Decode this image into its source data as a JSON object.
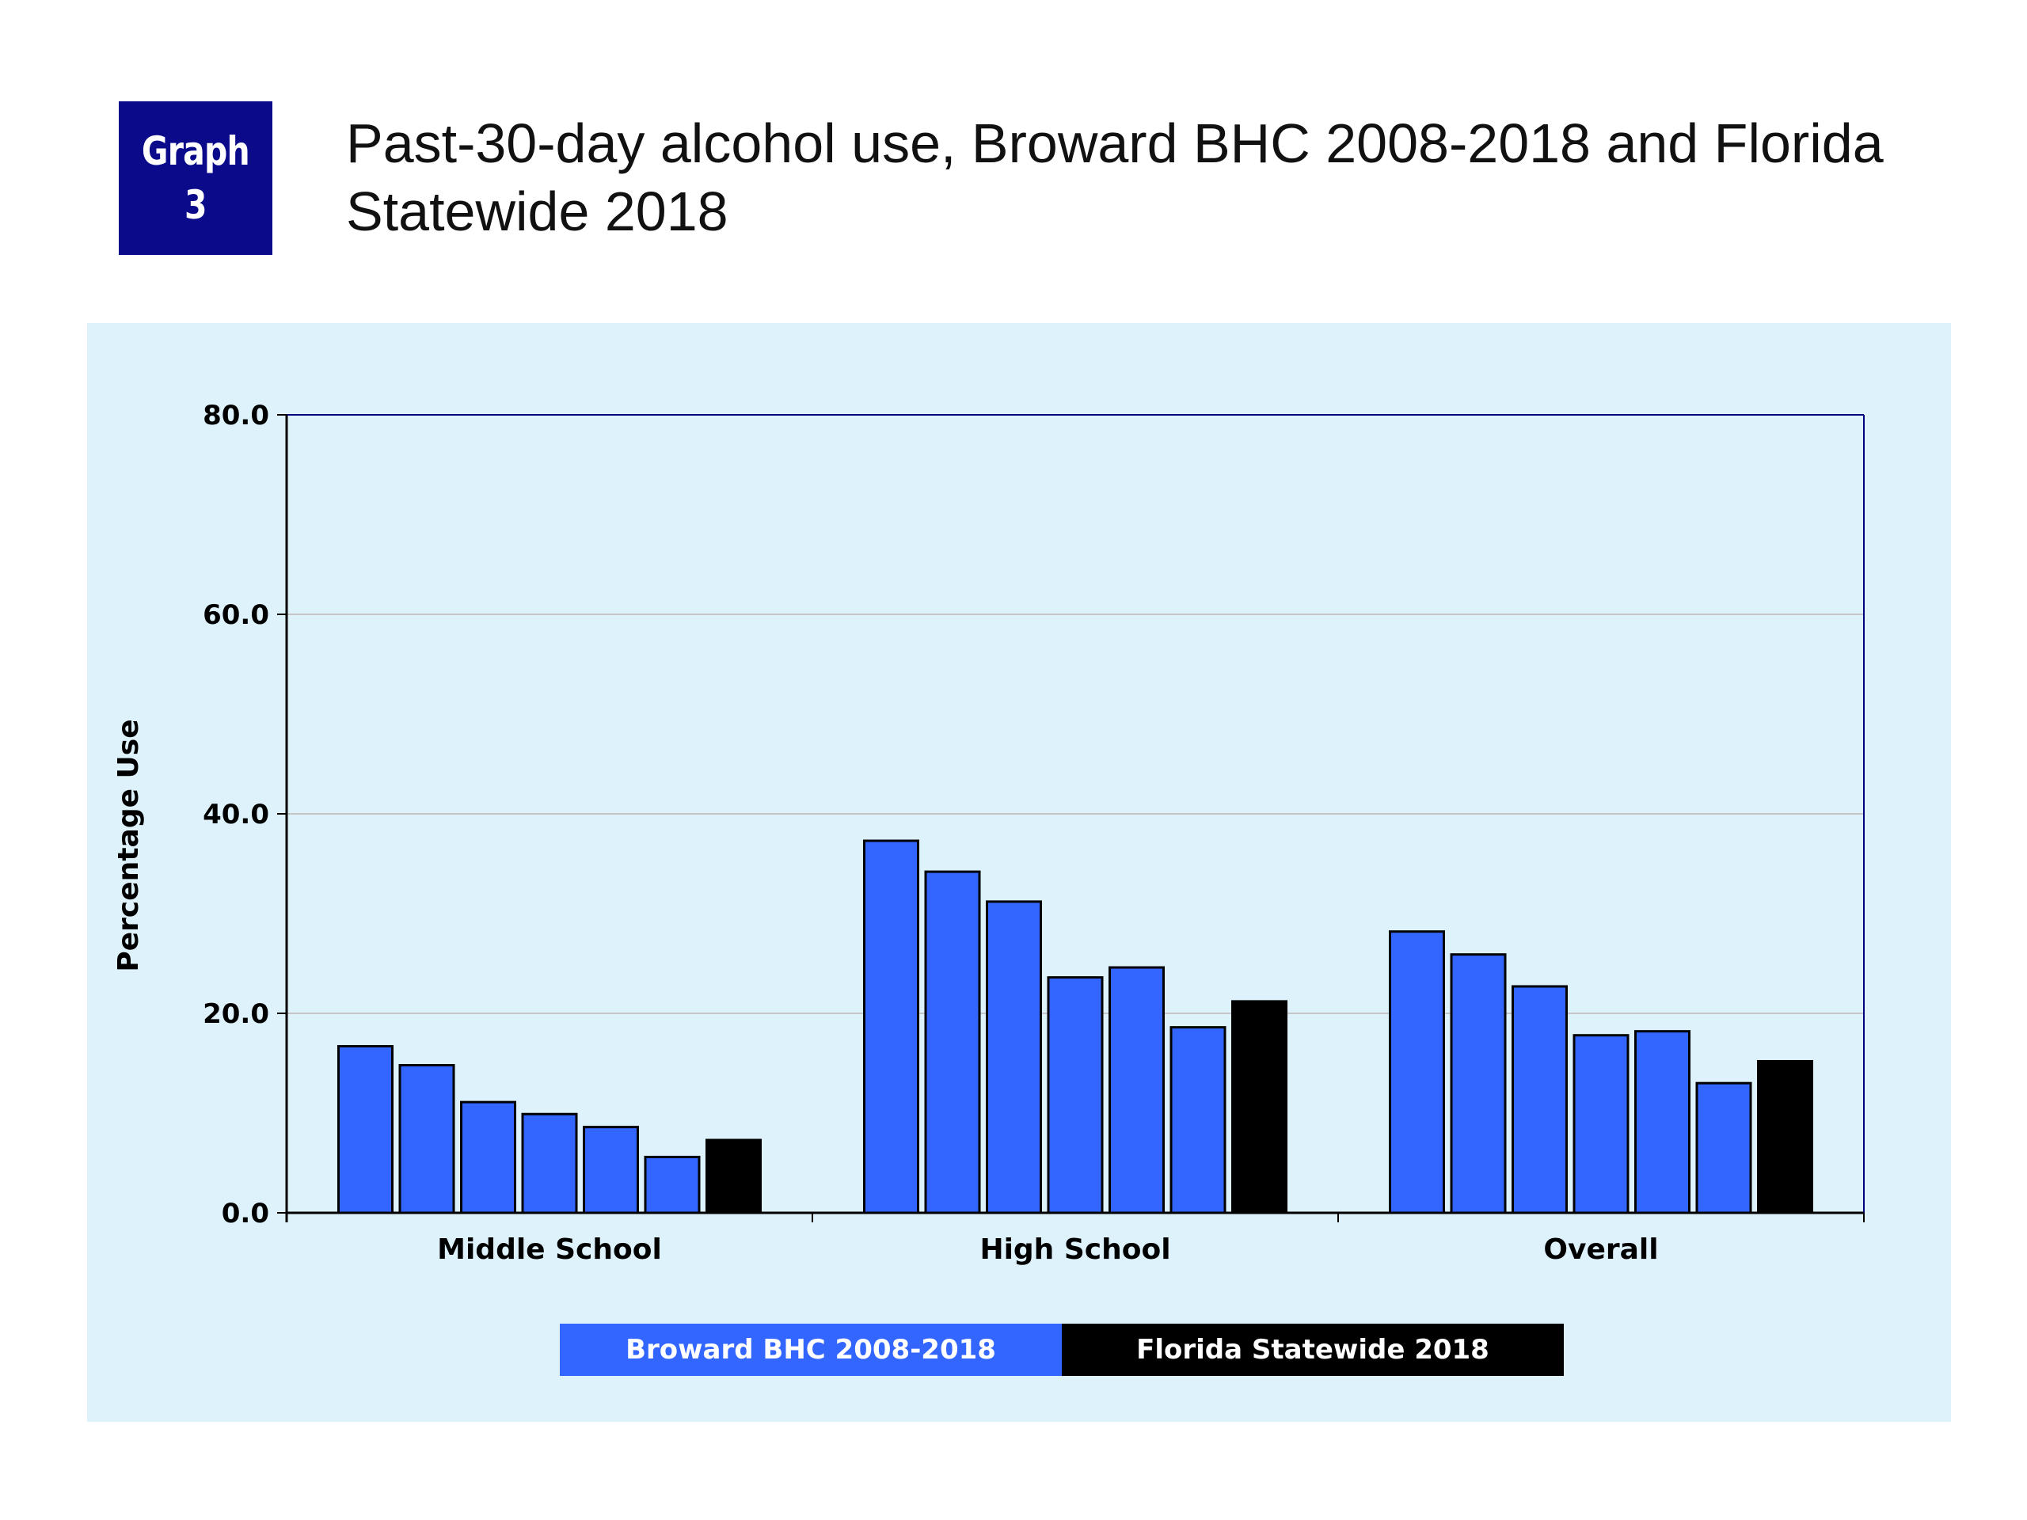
{
  "badge": {
    "line1": "Graph",
    "line2": "3"
  },
  "title": "Past-30-day alcohol use, Broward BHC 2008-2018 and Florida Statewide 2018",
  "colors": {
    "badge_bg": "#0a0a8a",
    "panel_bg": "#def2fc",
    "broward": "#3366ff",
    "statewide": "#000000",
    "plot_border": "#000080"
  },
  "chart_data": {
    "type": "bar",
    "title": "Past-30-day alcohol use, Broward BHC 2008-2018 and Florida Statewide 2018",
    "xlabel": "",
    "ylabel": "Percentage Use",
    "ylim": [
      0,
      80
    ],
    "yticks": [
      "0.0",
      "20.0",
      "40.0",
      "60.0",
      "80.0"
    ],
    "grid": true,
    "legend_position": "bottom",
    "categories": [
      "Middle School",
      "High School",
      "Overall"
    ],
    "groups": [
      {
        "category": "Middle School",
        "broward": [
          16.7,
          14.8,
          11.1,
          9.9,
          8.6,
          5.6
        ],
        "statewide": 7.3
      },
      {
        "category": "High School",
        "broward": [
          37.3,
          34.2,
          31.2,
          23.6,
          24.6,
          18.6
        ],
        "statewide": 21.2
      },
      {
        "category": "Overall",
        "broward": [
          28.2,
          25.9,
          22.7,
          17.8,
          18.2,
          13.0
        ],
        "statewide": 15.2
      }
    ],
    "legend": [
      {
        "label": "Broward BHC 2008-2018",
        "color": "#3366ff"
      },
      {
        "label": "Florida Statewide 2018",
        "color": "#000000"
      }
    ]
  }
}
